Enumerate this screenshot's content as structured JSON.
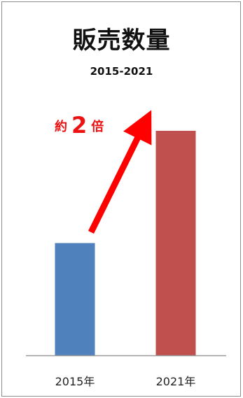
{
  "chart_data": {
    "type": "bar",
    "title": "販売数量",
    "subtitle": "2015-2021",
    "categories": [
      "2015年",
      "2021年"
    ],
    "values": [
      1,
      2
    ],
    "colors": [
      "#4f81bd",
      "#c0504d"
    ],
    "grid": false,
    "annotation": {
      "prefix": "約",
      "number": "2",
      "suffix": "倍",
      "color": "#ee1111"
    }
  }
}
